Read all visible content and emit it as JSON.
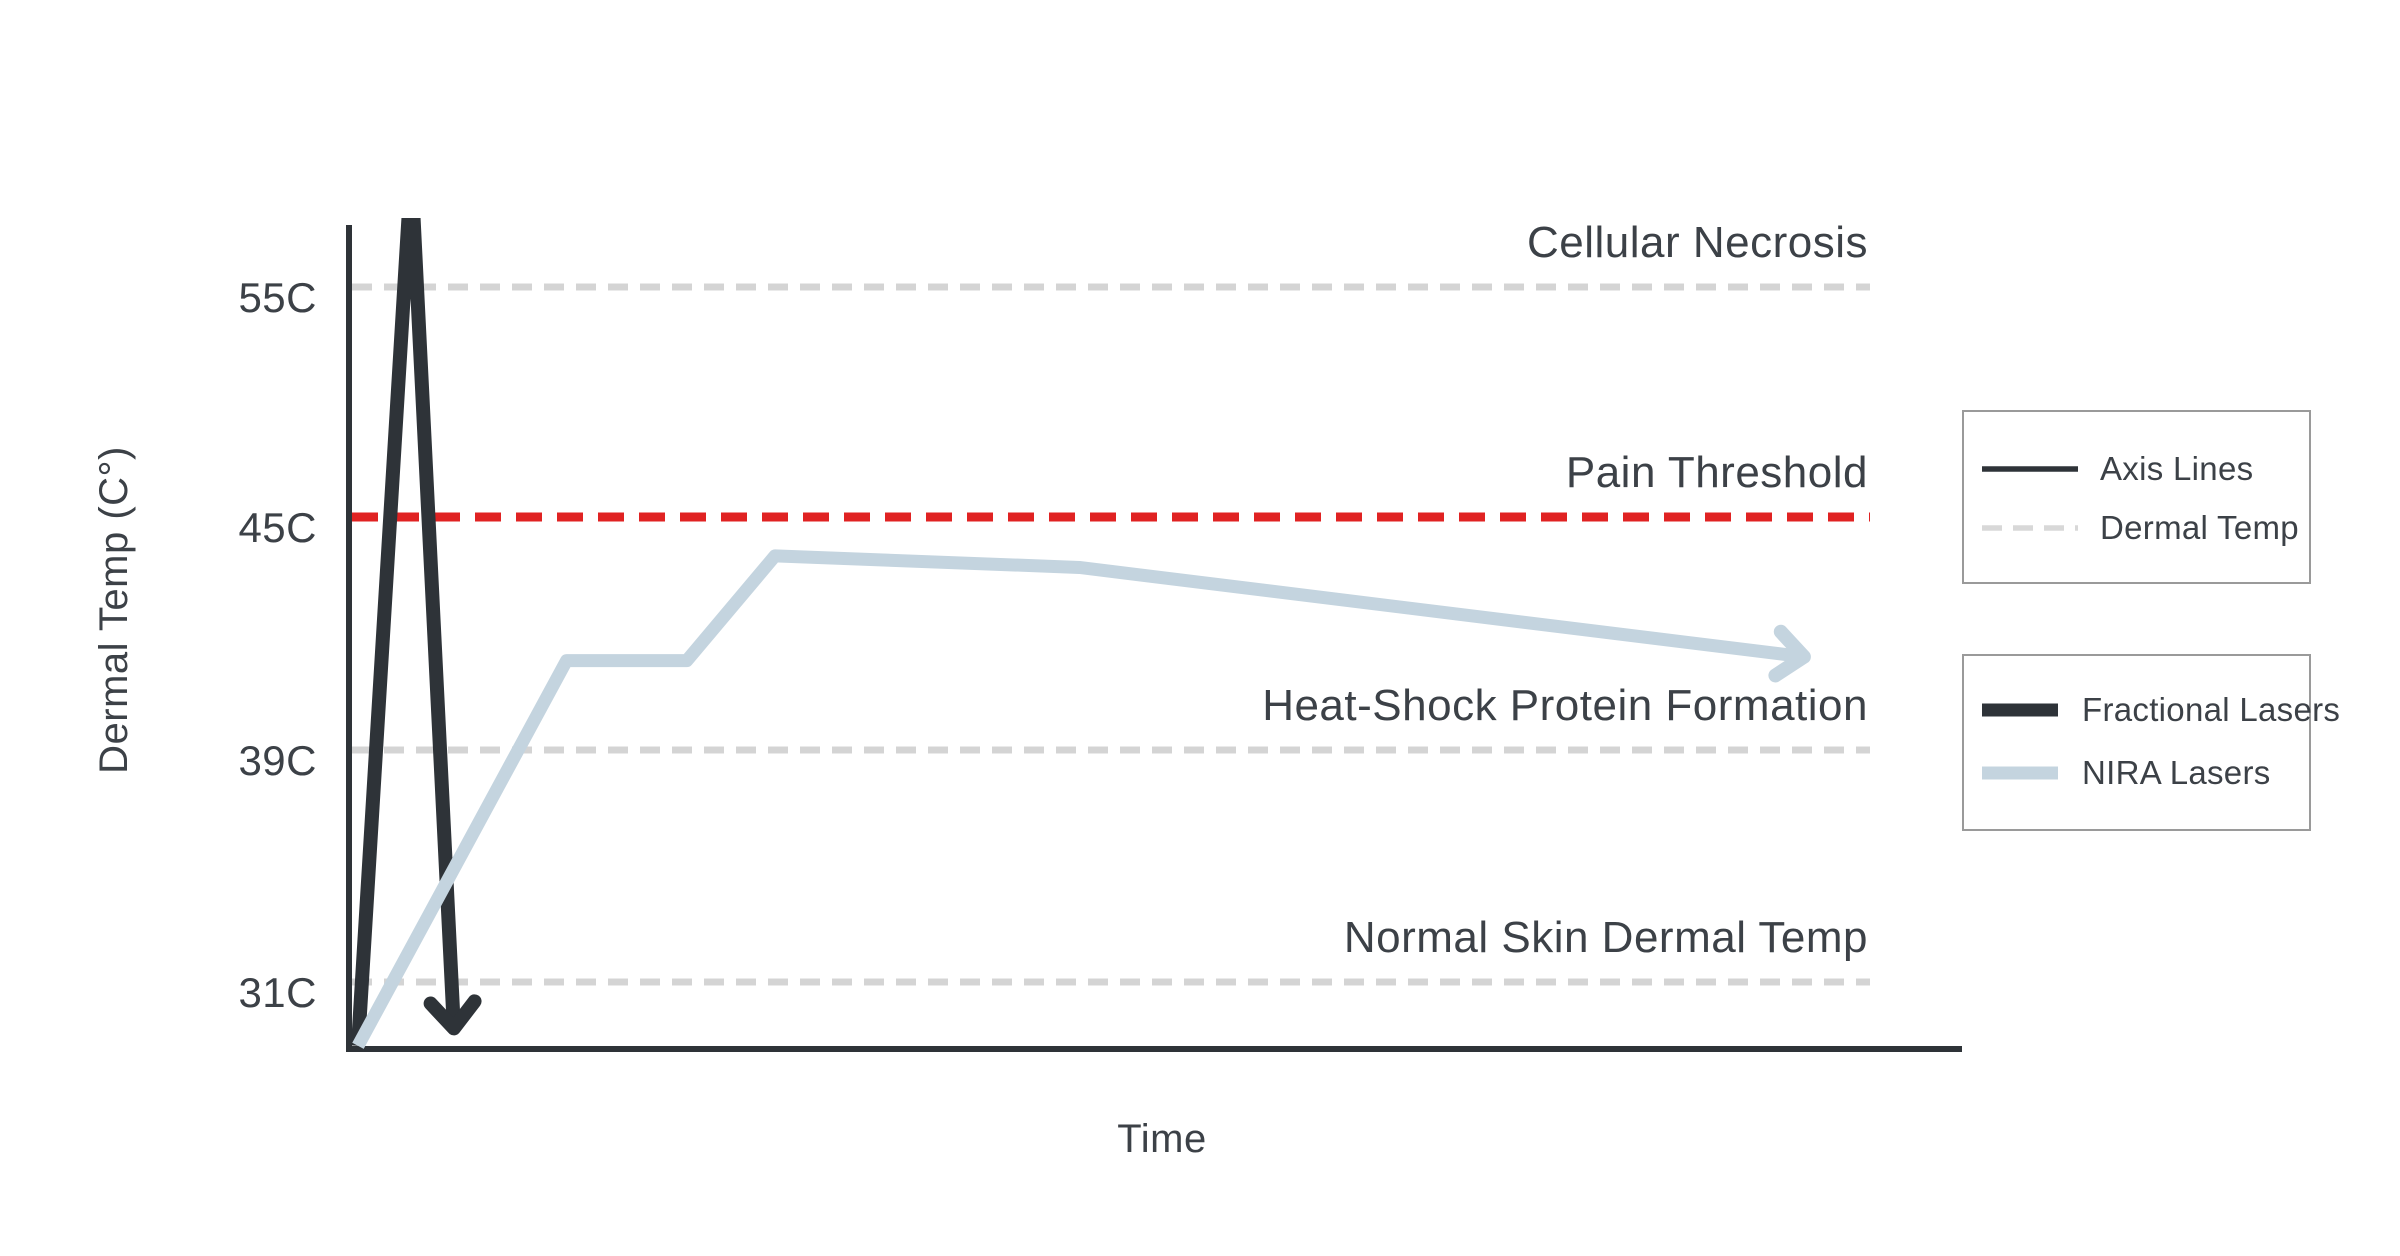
{
  "colors": {
    "axis": "#2e3338",
    "text": "#3c4147",
    "legend_border": "#9a9a9a",
    "background": "#ffffff"
  },
  "chart_data": {
    "type": "line",
    "title": "",
    "xlabel": "Time",
    "ylabel": "Dermal Temp (C°)",
    "x_axis": {
      "label": "Time",
      "numeric": false
    },
    "y_axis": {
      "label": "Dermal Temp (C°)",
      "tick_labels": [
        "55C",
        "45C",
        "39C",
        "31C"
      ],
      "tick_values": [
        55,
        45,
        39,
        31
      ]
    },
    "grid": "horizontal-dashed",
    "legend_position": "right",
    "thresholds": [
      {
        "label": "Cellular Necrosis",
        "value": 55,
        "line_style": "dashed",
        "color": "#d4d4d4",
        "label_color": "#3c4147"
      },
      {
        "label": "Pain Threshold",
        "value": 45,
        "line_style": "dashed",
        "color": "#e02222",
        "label_color": "#e02222"
      },
      {
        "label": "Heat-Shock Protein Formation",
        "value": 39,
        "line_style": "dashed",
        "color": "#d4d4d4",
        "label_color": "#3c4147"
      },
      {
        "label": "Normal Skin Dermal Temp",
        "value": 31,
        "line_style": "dashed",
        "color": "#d4d4d4",
        "label_color": "#3c4147"
      }
    ],
    "series": [
      {
        "name": "Fractional Lasers",
        "color": "#2e3338",
        "arrow_end": "down",
        "clipped_at_top": true,
        "points_time_temp": [
          [
            0,
            28.8
          ],
          [
            3.5,
            60
          ],
          [
            6.3,
            29.4
          ]
        ]
      },
      {
        "name": "NIRA Lasers",
        "color": "#c4d4df",
        "arrow_end": "right",
        "clipped_at_top": false,
        "points_time_temp": [
          [
            0,
            28.8
          ],
          [
            13.7,
            41.3
          ],
          [
            21.6,
            41.3
          ],
          [
            27.4,
            44.0
          ],
          [
            47.4,
            43.7
          ],
          [
            95,
            41.4
          ]
        ]
      }
    ],
    "legend_boxes": [
      {
        "entries": [
          {
            "label": "Axis Lines",
            "swatch": "solid-thin",
            "color": "#2e3338"
          },
          {
            "label": "Dermal Temp",
            "swatch": "dashed",
            "color": "#d8d8d8"
          }
        ]
      },
      {
        "entries": [
          {
            "label": "Fractional Lasers",
            "swatch": "solid-thick",
            "color": "#2e3338"
          },
          {
            "label": "NIRA Lasers",
            "swatch": "solid-thick",
            "color": "#c4d4df"
          }
        ]
      }
    ]
  }
}
